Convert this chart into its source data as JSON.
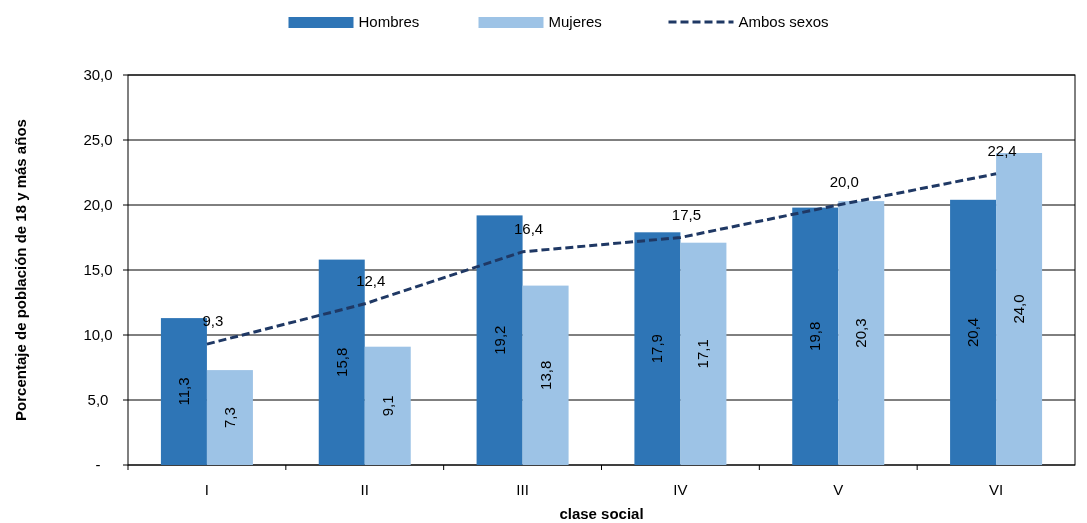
{
  "chart_data": {
    "type": "bar",
    "xlabel": "clase social",
    "ylabel": "Porcentaje de población de 18 y más años",
    "categories": [
      "I",
      "II",
      "III",
      "IV",
      "V",
      "VI"
    ],
    "series": [
      {
        "name": "Hombres",
        "color": "#2e75b6",
        "values": [
          11.3,
          15.8,
          19.2,
          17.9,
          19.8,
          20.4
        ],
        "value_labels": [
          "11,3",
          "15,8",
          "19,2",
          "17,9",
          "19,8",
          "20,4"
        ]
      },
      {
        "name": "Mujeres",
        "color": "#9dc3e6",
        "values": [
          7.3,
          9.1,
          13.8,
          17.1,
          20.3,
          24.0
        ],
        "value_labels": [
          "7,3",
          "9,1",
          "13,8",
          "17,1",
          "20,3",
          "24,0"
        ]
      },
      {
        "name": "Ambos sexos",
        "type": "line",
        "color": "#1f3864",
        "line_style": "dashed",
        "values": [
          9.3,
          12.4,
          16.4,
          17.5,
          20.0,
          22.4
        ],
        "value_labels": [
          "9,3",
          "12,4",
          "16,4",
          "17,5",
          "20,0",
          "22,4"
        ]
      }
    ],
    "ylim": [
      0,
      30
    ],
    "yticks": [
      {
        "value": 0,
        "label": "-"
      },
      {
        "value": 5,
        "label": "5,0"
      },
      {
        "value": 10,
        "label": "10,0"
      },
      {
        "value": 15,
        "label": "15,0"
      },
      {
        "value": 20,
        "label": "20,0"
      },
      {
        "value": 25,
        "label": "25,0"
      },
      {
        "value": 30,
        "label": "30,0"
      }
    ],
    "grid": "y",
    "legend": "top"
  }
}
